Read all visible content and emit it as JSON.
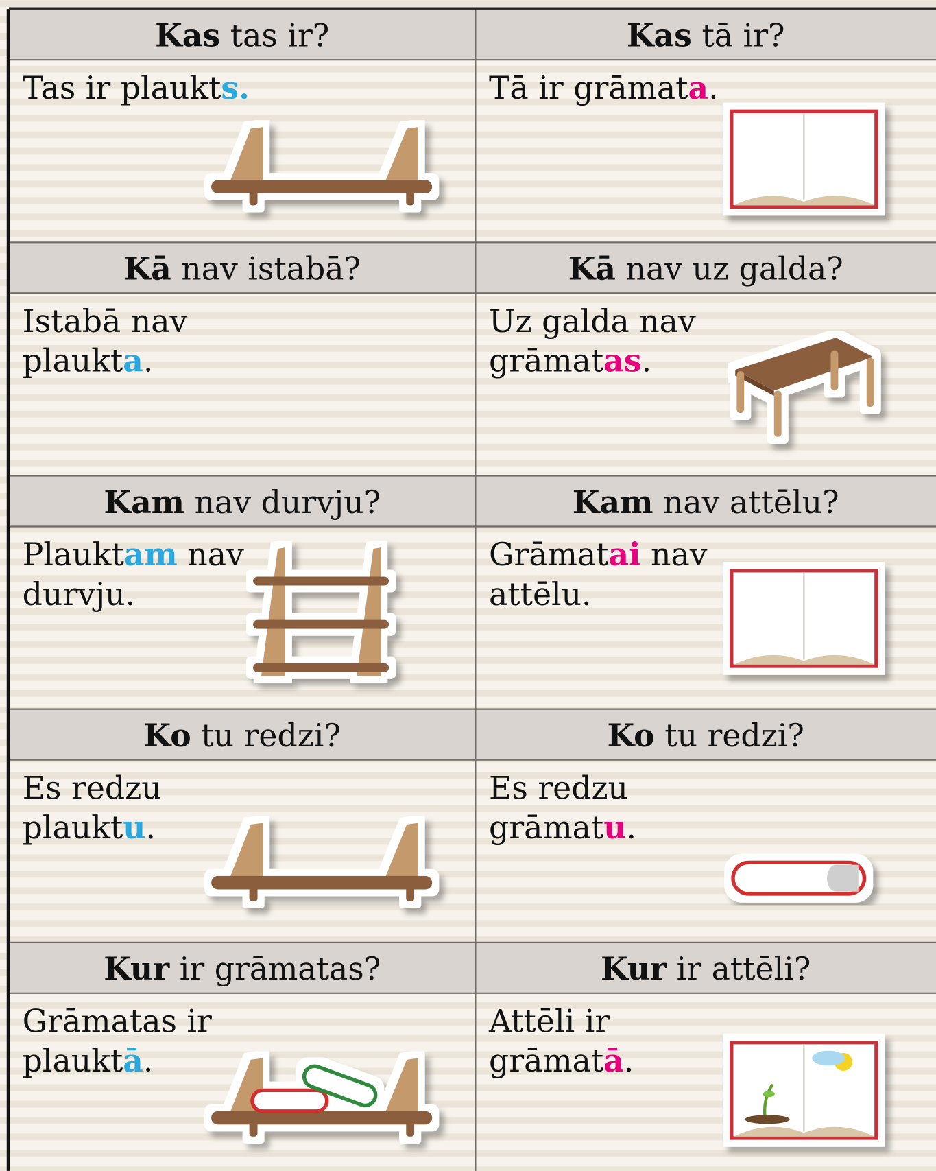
{
  "accent_colors": [
    "#29a9e0",
    "#e6007e"
  ],
  "cells": [
    {
      "question_bold": "Kas",
      "question_rest": "tas ir?",
      "answer_lines": [
        [
          "Tas ir plaukt",
          {
            "accent": "s."
          }
        ]
      ]
    },
    {
      "question_bold": "Kas",
      "question_rest": "tā ir?",
      "answer_lines": [
        [
          "Tā ir grāmat",
          {
            "accent": "a"
          },
          "."
        ]
      ]
    },
    {
      "question_bold": "Kā",
      "question_rest": "nav istabā?",
      "answer_lines": [
        [
          "Istabā nav"
        ],
        [
          "plaukt",
          {
            "accent": "a"
          },
          "."
        ]
      ]
    },
    {
      "question_bold": "Kā",
      "question_rest": "nav uz galda?",
      "answer_lines": [
        [
          "Uz galda nav"
        ],
        [
          "grāmat",
          {
            "accent": "as"
          },
          "."
        ]
      ]
    },
    {
      "question_bold": "Kam",
      "question_rest": "nav durvju?",
      "answer_lines": [
        [
          "Plaukt",
          {
            "accent": "am"
          },
          " nav"
        ],
        [
          "durvju."
        ]
      ]
    },
    {
      "question_bold": "Kam",
      "question_rest": "nav attēlu?",
      "answer_lines": [
        [
          "Grāmat",
          {
            "accent": "ai"
          },
          " nav"
        ],
        [
          "attēlu."
        ]
      ]
    },
    {
      "question_bold": "Ko",
      "question_rest": "tu redzi?",
      "answer_lines": [
        [
          "Es redzu"
        ],
        [
          "plaukt",
          {
            "accent": "u"
          },
          "."
        ]
      ]
    },
    {
      "question_bold": "Ko",
      "question_rest": "tu redzi?",
      "answer_lines": [
        [
          "Es redzu"
        ],
        [
          "grāmat",
          {
            "accent": "u"
          },
          "."
        ]
      ]
    },
    {
      "question_bold": "Kur",
      "question_rest": "ir grāmatas?",
      "answer_lines": [
        [
          "Grāmatas ir"
        ],
        [
          "plaukt",
          {
            "accent": "ā"
          },
          "."
        ]
      ]
    },
    {
      "question_bold": "Kur",
      "question_rest": "ir attēli?",
      "answer_lines": [
        [
          "Attēli ir"
        ],
        [
          "grāmat",
          {
            "accent": "ā"
          },
          "."
        ]
      ]
    }
  ]
}
